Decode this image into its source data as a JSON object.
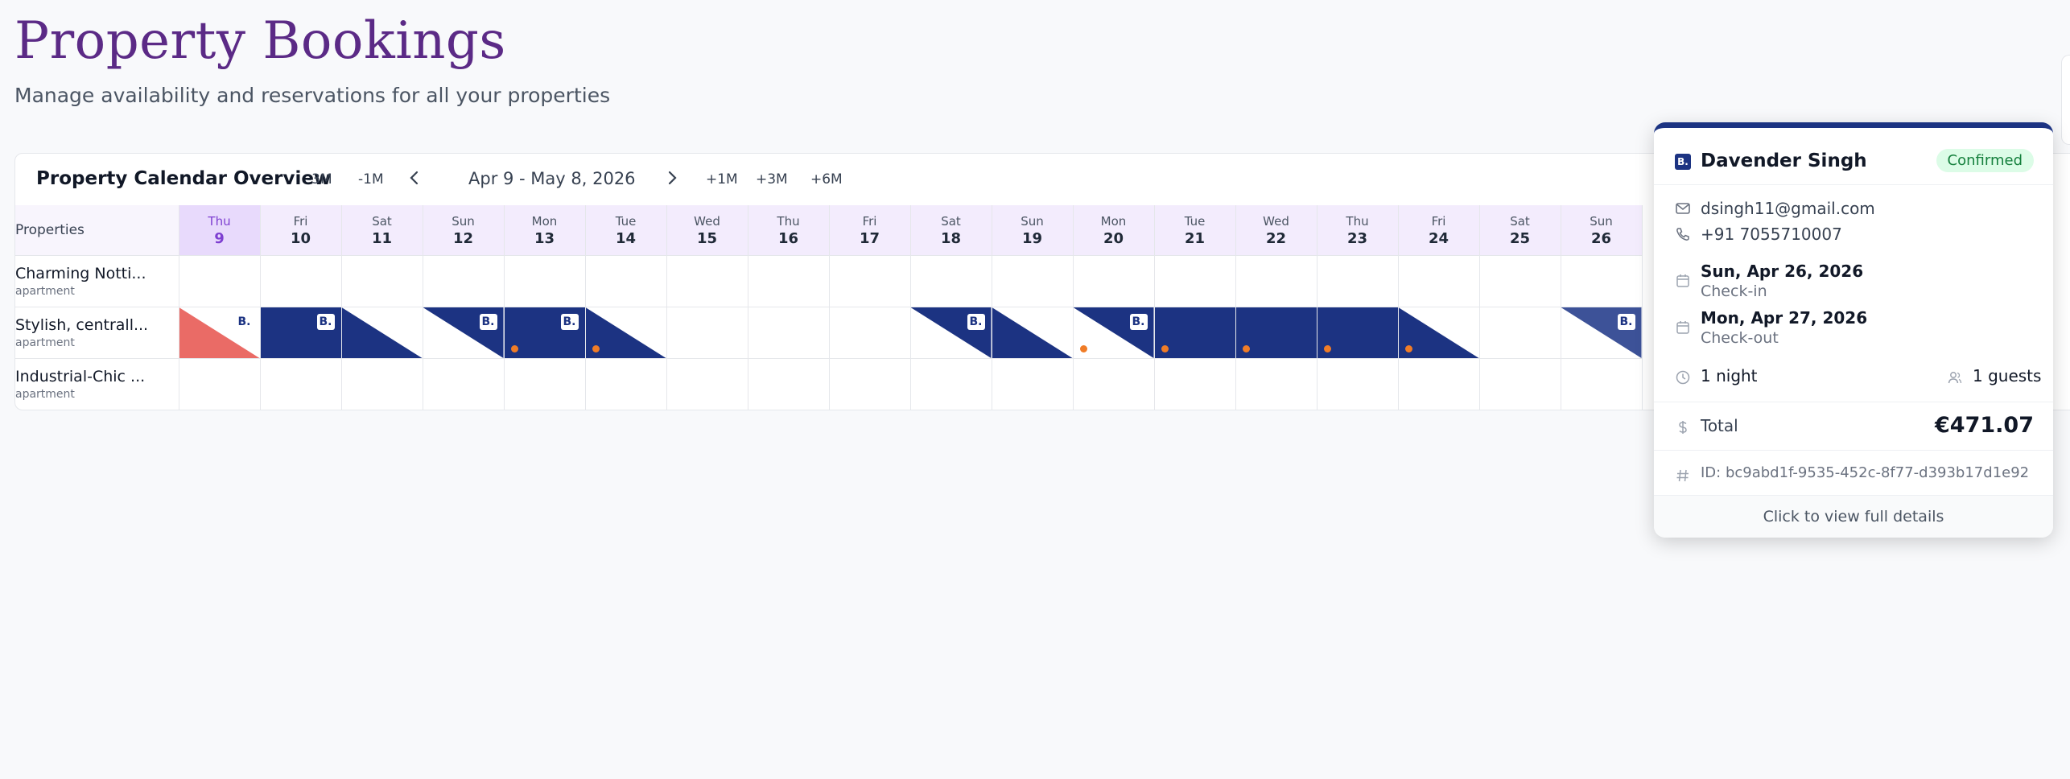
{
  "page": {
    "title": "Property Bookings",
    "subtitle": "Manage availability and reservations for all your properties"
  },
  "calendar": {
    "title": "Property Calendar Overview",
    "nav": {
      "back3": "-3M",
      "back1": "-1M",
      "range": "Apr 9 - May 8, 2026",
      "fwd1": "+1M",
      "fwd3": "+3M",
      "fwd6": "+6M"
    },
    "properties_header": "Properties",
    "days": [
      {
        "name": "Thu",
        "date": "9"
      },
      {
        "name": "Fri",
        "date": "10"
      },
      {
        "name": "Sat",
        "date": "11"
      },
      {
        "name": "Sun",
        "date": "12"
      },
      {
        "name": "Mon",
        "date": "13"
      },
      {
        "name": "Tue",
        "date": "14"
      },
      {
        "name": "Wed",
        "date": "15"
      },
      {
        "name": "Thu",
        "date": "16"
      },
      {
        "name": "Fri",
        "date": "17"
      },
      {
        "name": "Sat",
        "date": "18"
      },
      {
        "name": "Sun",
        "date": "19"
      },
      {
        "name": "Mon",
        "date": "20"
      },
      {
        "name": "Tue",
        "date": "21"
      },
      {
        "name": "Wed",
        "date": "22"
      },
      {
        "name": "Thu",
        "date": "23"
      },
      {
        "name": "Fri",
        "date": "24"
      },
      {
        "name": "Sat",
        "date": "25"
      },
      {
        "name": "Sun",
        "date": "26"
      }
    ],
    "rows": [
      {
        "name": "Charming Notti...",
        "type": "apartment"
      },
      {
        "name": "Stylish, centrall...",
        "type": "apartment"
      },
      {
        "name": "Industrial-Chic ...",
        "type": "apartment"
      }
    ],
    "booking_logo": "B.",
    "colors": {
      "booking": "#1c3382",
      "blocked": "#ea6b66",
      "dot": "#f07c27",
      "accent": "#5b2a86"
    }
  },
  "popup": {
    "logo": "B.",
    "guest_name": "Davender Singh",
    "status": "Confirmed",
    "email": "dsingh11@gmail.com",
    "phone": "+91 7055710007",
    "checkin_date": "Sun, Apr 26, 2026",
    "checkin_label": "Check-in",
    "checkout_date": "Mon, Apr 27, 2026",
    "checkout_label": "Check-out",
    "nights": "1 night",
    "guests": "1 guests",
    "total_label": "Total",
    "total_value": "€471.07",
    "booking_id": "ID: bc9abd1f-9535-452c-8f77-d393b17d1e92",
    "footer": "Click to view full details"
  }
}
